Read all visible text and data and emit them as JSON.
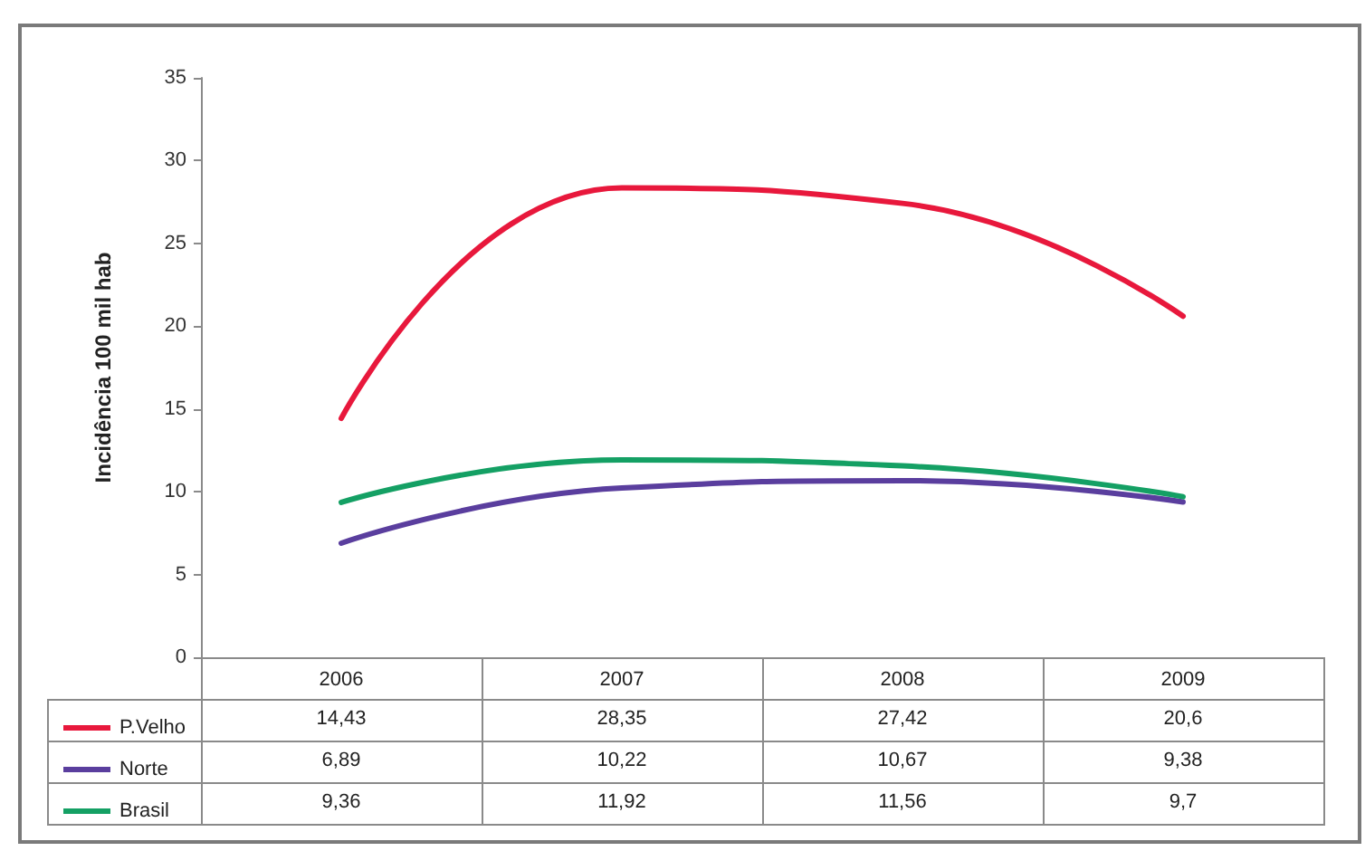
{
  "chart_data": {
    "type": "line",
    "ylabel": "Incidência 100 mil hab",
    "categories": [
      "2006",
      "2007",
      "2008",
      "2009"
    ],
    "series": [
      {
        "name": "P.Velho",
        "color": "#e8183c",
        "values": [
          14.43,
          28.35,
          27.42,
          20.6
        ],
        "value_labels": [
          "14,43",
          "28,35",
          "27,42",
          "20,6"
        ]
      },
      {
        "name": "Norte",
        "color": "#5a3e9e",
        "values": [
          6.89,
          10.22,
          10.67,
          9.38
        ],
        "value_labels": [
          "6,89",
          "10,22",
          "10,67",
          "9,38"
        ]
      },
      {
        "name": "Brasil",
        "color": "#14a064",
        "values": [
          9.36,
          11.92,
          11.56,
          9.7
        ],
        "value_labels": [
          "9,36",
          "11,92",
          "11,56",
          "9,7"
        ]
      }
    ],
    "ylim": [
      0,
      35
    ],
    "yticks": [
      0,
      5,
      10,
      15,
      20,
      25,
      30,
      35
    ],
    "legend": "bottom left",
    "marker": "none",
    "line_style": "solid"
  }
}
